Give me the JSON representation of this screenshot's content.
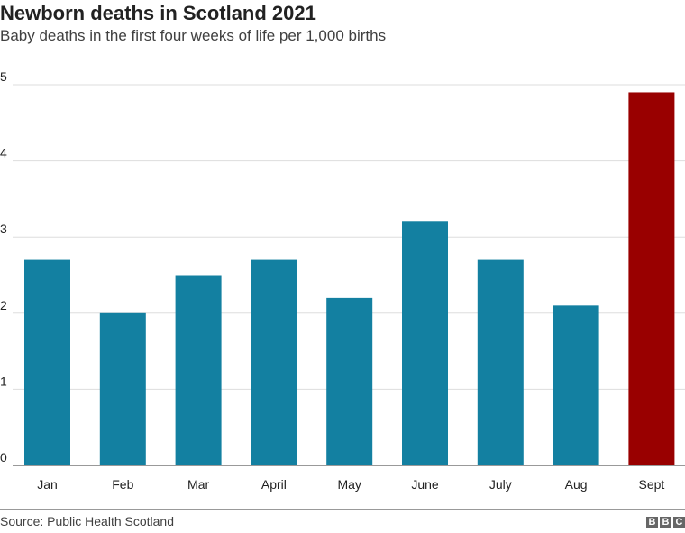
{
  "chart_data": {
    "type": "bar",
    "title": "Newborn deaths in Scotland 2021",
    "subtitle": "Baby deaths in the first four weeks of life per 1,000 births",
    "categories": [
      "Jan",
      "Feb",
      "Mar",
      "April",
      "May",
      "June",
      "July",
      "Aug",
      "Sept"
    ],
    "values": [
      2.7,
      2.0,
      2.5,
      2.7,
      2.2,
      3.2,
      2.7,
      2.1,
      4.9
    ],
    "ylim": [
      0,
      5
    ],
    "yticks": [
      0,
      1,
      2,
      3,
      4,
      5
    ],
    "grid": true,
    "colors": {
      "default": "#1380A1",
      "highlight": "#990000"
    },
    "highlight_category": "Sept"
  },
  "footer": {
    "source": "Source: Public Health Scotland",
    "logo": "BBC"
  }
}
